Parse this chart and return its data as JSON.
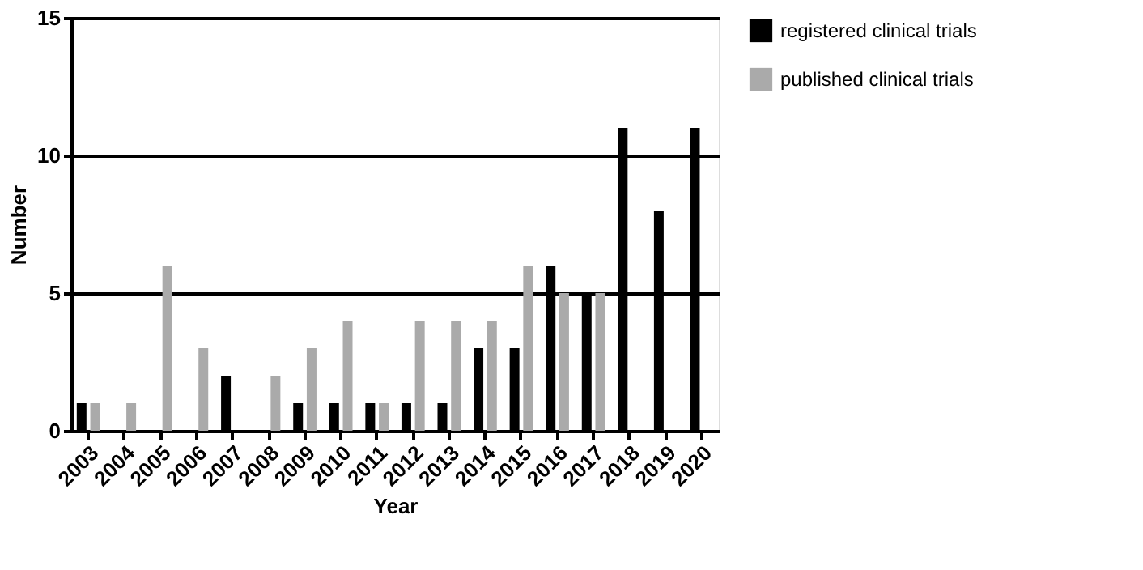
{
  "chart_data": {
    "type": "bar",
    "xlabel": "Year",
    "ylabel": "Number",
    "categories": [
      "2003",
      "2004",
      "2005",
      "2006",
      "2007",
      "2008",
      "2009",
      "2010",
      "2011",
      "2012",
      "2013",
      "2014",
      "2015",
      "2016",
      "2017",
      "2018",
      "2019",
      "2020"
    ],
    "series": [
      {
        "name": "registered clinical trials",
        "color": "#000000",
        "values": [
          1,
          0,
          0,
          0,
          2,
          0,
          1,
          1,
          1,
          1,
          1,
          3,
          3,
          6,
          5,
          11,
          8,
          11
        ]
      },
      {
        "name": "published clinical trials",
        "color": "#aaaaaa",
        "values": [
          1,
          1,
          6,
          3,
          0,
          2,
          3,
          4,
          1,
          4,
          4,
          4,
          6,
          5,
          5,
          0,
          0,
          0
        ]
      }
    ],
    "ylim": [
      0,
      15
    ],
    "yticks": [
      0,
      5,
      10,
      15
    ],
    "grid": "y",
    "legend": "top right"
  }
}
